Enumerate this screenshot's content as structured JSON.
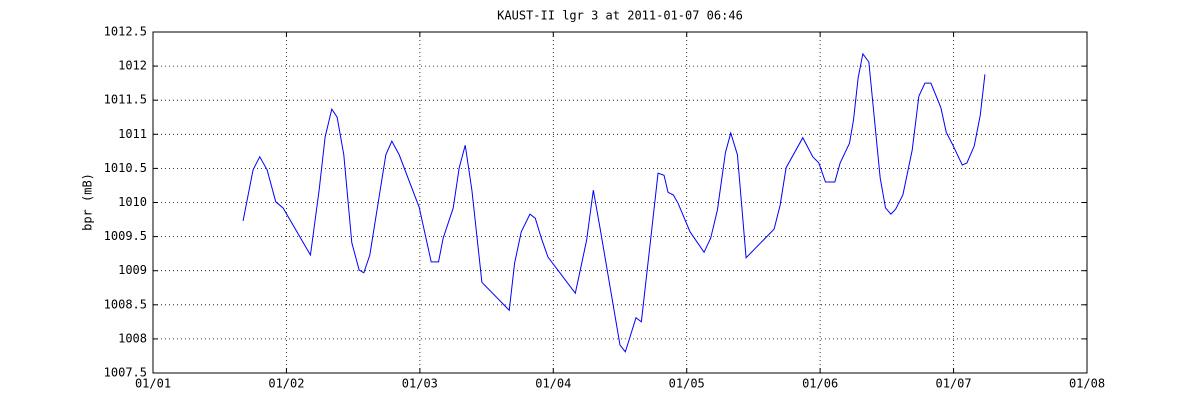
{
  "chart_data": {
    "type": "line",
    "title": "KAUST-II lgr 3 at 2011-01-07 06:46",
    "y_label": "bpr (mB)",
    "color": "#0000ff",
    "grid": true,
    "xlim": [
      0,
      7
    ],
    "xticks": [
      {
        "value": 0,
        "label": "01/01"
      },
      {
        "value": 1,
        "label": "01/02"
      },
      {
        "value": 2,
        "label": "01/03"
      },
      {
        "value": 3,
        "label": "01/04"
      },
      {
        "value": 4,
        "label": "01/05"
      },
      {
        "value": 5,
        "label": "01/06"
      },
      {
        "value": 6,
        "label": "01/07"
      },
      {
        "value": 7,
        "label": "01/08"
      }
    ],
    "ylim": [
      1007.5,
      1012.5
    ],
    "yticks": [
      1007.5,
      1008,
      1008.5,
      1009,
      1009.5,
      1010,
      1010.5,
      1011,
      1011.5,
      1012,
      1012.5
    ],
    "x": [
      0.675,
      0.75,
      0.8,
      0.855,
      0.92,
      0.975,
      1.18,
      1.245,
      1.29,
      1.34,
      1.38,
      1.43,
      1.49,
      1.545,
      1.58,
      1.625,
      1.745,
      1.79,
      1.845,
      1.995,
      2.085,
      2.14,
      2.175,
      2.25,
      2.295,
      2.34,
      2.39,
      2.465,
      2.67,
      2.71,
      2.76,
      2.825,
      2.865,
      2.91,
      2.96,
      3.165,
      3.21,
      3.25,
      3.3,
      3.35,
      3.5,
      3.54,
      3.62,
      3.66,
      3.735,
      3.785,
      3.83,
      3.86,
      3.9,
      3.935,
      4.025,
      4.13,
      4.18,
      4.23,
      4.29,
      4.33,
      4.38,
      4.445,
      4.655,
      4.7,
      4.745,
      4.87,
      4.945,
      4.99,
      5.04,
      5.11,
      5.15,
      5.22,
      5.25,
      5.285,
      5.32,
      5.365,
      5.45,
      5.49,
      5.53,
      5.565,
      5.62,
      5.69,
      5.74,
      5.785,
      5.83,
      5.905,
      5.945,
      5.99,
      6.065,
      6.1,
      6.155,
      6.2,
      6.235
    ],
    "values": [
      1009.73,
      1010.48,
      1010.67,
      1010.48,
      1010.01,
      1009.92,
      1009.23,
      1010.18,
      1010.96,
      1011.37,
      1011.25,
      1010.7,
      1009.41,
      1009.01,
      1008.97,
      1009.23,
      1010.7,
      1010.9,
      1010.7,
      1009.93,
      1009.13,
      1009.13,
      1009.48,
      1009.92,
      1010.51,
      1010.84,
      1010.18,
      1008.83,
      1008.42,
      1009.11,
      1009.57,
      1009.83,
      1009.77,
      1009.48,
      1009.2,
      1008.67,
      1009.08,
      1009.45,
      1010.18,
      1009.63,
      1007.91,
      1007.81,
      1008.31,
      1008.25,
      1009.55,
      1010.43,
      1010.4,
      1010.15,
      1010.11,
      1009.99,
      1009.57,
      1009.27,
      1009.48,
      1009.89,
      1010.73,
      1011.02,
      1010.7,
      1009.19,
      1009.61,
      1009.96,
      1010.51,
      1010.95,
      1010.67,
      1010.58,
      1010.3,
      1010.3,
      1010.58,
      1010.87,
      1011.21,
      1011.83,
      1012.18,
      1012.06,
      1010.36,
      1009.92,
      1009.83,
      1009.9,
      1010.11,
      1010.77,
      1011.56,
      1011.75,
      1011.75,
      1011.39,
      1011.03,
      1010.86,
      1010.55,
      1010.58,
      1010.83,
      1011.28,
      1011.88
    ]
  }
}
